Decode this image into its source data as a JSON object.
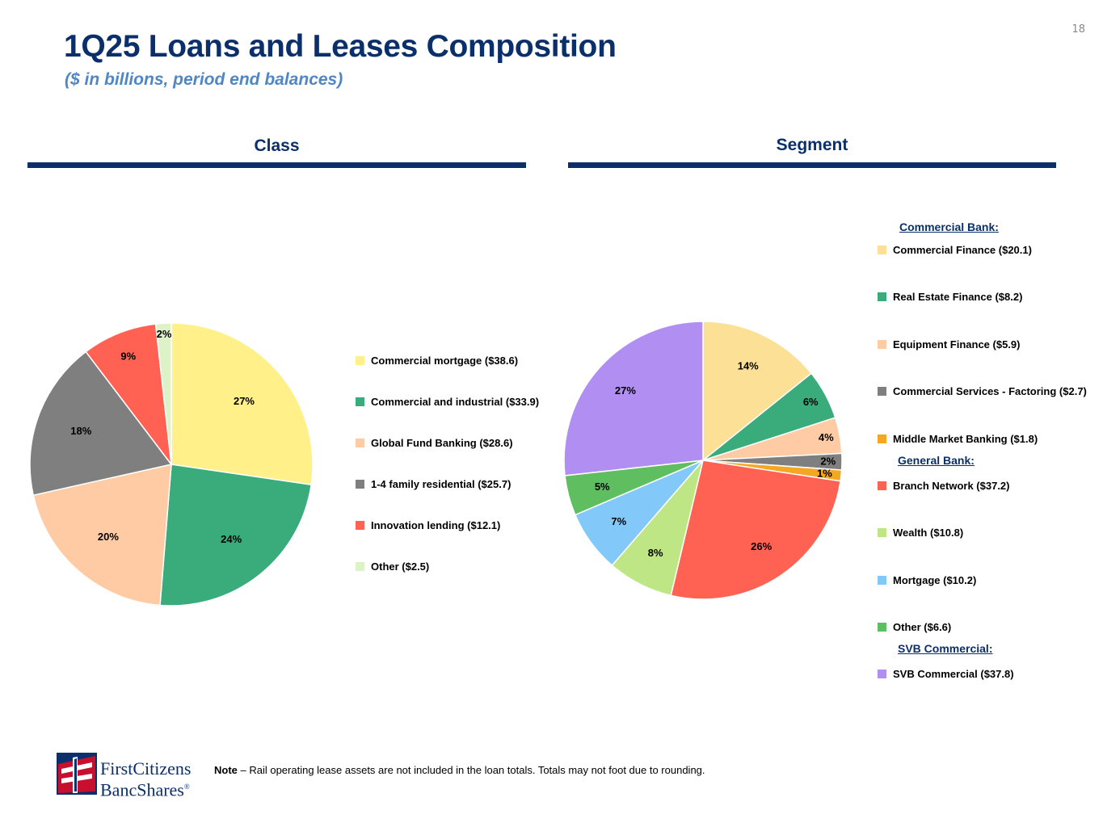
{
  "page_number": "18",
  "title": "1Q25 Loans and Leases Composition",
  "subtitle": "($ in billions, period end balances)",
  "sections": {
    "class": "Class",
    "segment": "Segment"
  },
  "chart_data": [
    {
      "id": "class",
      "type": "pie",
      "title": "Class",
      "slices": [
        {
          "label": "Commercial mortgage ($38.6)",
          "name": "Commercial mortgage",
          "value": 38.6,
          "pct": "27%",
          "color": "#fff08a"
        },
        {
          "label": "Commercial and industrial ($33.9)",
          "name": "Commercial and industrial",
          "value": 33.9,
          "pct": "24%",
          "color": "#3aab7b"
        },
        {
          "label": "Global Fund Banking ($28.6)",
          "name": "Global Fund Banking",
          "value": 28.6,
          "pct": "20%",
          "color": "#ffcba4"
        },
        {
          "label": "1-4 family residential ($25.7)",
          "name": "1-4 family residential",
          "value": 25.7,
          "pct": "18%",
          "color": "#7f7f7f"
        },
        {
          "label": "Innovation lending ($12.1)",
          "name": "Innovation lending",
          "value": 12.1,
          "pct": "9%",
          "color": "#ff6153"
        },
        {
          "label": "Other ($2.5)",
          "name": "Other",
          "value": 2.5,
          "pct": "2%",
          "color": "#ddf3c7"
        }
      ]
    },
    {
      "id": "segment",
      "type": "pie",
      "title": "Segment",
      "slices": [
        {
          "label": "Commercial Finance ($20.1)",
          "name": "Commercial Finance",
          "value": 20.1,
          "pct": "14%",
          "color": "#fbe096",
          "group": "Commercial Bank:"
        },
        {
          "label": "Real Estate Finance ($8.2)",
          "name": "Real Estate Finance",
          "value": 8.2,
          "pct": "6%",
          "color": "#3aab7b",
          "group": "Commercial Bank:"
        },
        {
          "label": "Equipment Finance ($5.9)",
          "name": "Equipment Finance",
          "value": 5.9,
          "pct": "4%",
          "color": "#ffcba4",
          "group": "Commercial Bank:"
        },
        {
          "label": "Commercial Services - Factoring  ($2.7)",
          "name": "Commercial Services - Factoring",
          "value": 2.7,
          "pct": "2%",
          "color": "#7f7f7f",
          "group": "Commercial Bank:"
        },
        {
          "label": "Middle Market Banking ($1.8)",
          "name": "Middle Market Banking",
          "value": 1.8,
          "pct": "1%",
          "color": "#f5a623",
          "group": "Commercial Bank:"
        },
        {
          "label": "Branch Network ($37.2)",
          "name": "Branch Network",
          "value": 37.2,
          "pct": "26%",
          "color": "#ff6153",
          "group": "General Bank:"
        },
        {
          "label": "Wealth ($10.8)",
          "name": "Wealth",
          "value": 10.8,
          "pct": "8%",
          "color": "#bfe685",
          "group": "General Bank:"
        },
        {
          "label": "Mortgage ($10.2)",
          "name": "Mortgage",
          "value": 10.2,
          "pct": "7%",
          "color": "#82c8f9",
          "group": "General Bank:"
        },
        {
          "label": "Other ($6.6)",
          "name": "Other",
          "value": 6.6,
          "pct": "5%",
          "color": "#5fbf60",
          "group": "General Bank:"
        },
        {
          "label": "SVB Commercial ($37.8)",
          "name": "SVB Commercial",
          "value": 37.8,
          "pct": "27%",
          "color": "#b18ef2",
          "group": "SVB Commercial:"
        }
      ],
      "groups": [
        "Commercial Bank:",
        "General Bank:",
        "SVB Commercial:"
      ]
    }
  ],
  "logo": {
    "line1": "FirstCitizens",
    "line2": "BancShares",
    "mark": "®",
    "colors": {
      "blue": "#0b2f6b",
      "red": "#c8102e"
    }
  },
  "note": {
    "label": "Note",
    "text": " – Rail operating lease assets are not included in the loan totals. Totals may not foot due to rounding."
  }
}
